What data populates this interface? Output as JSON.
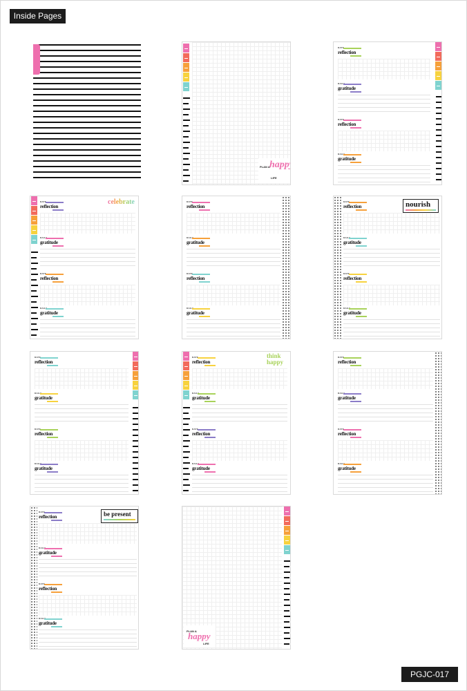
{
  "header": {
    "label": "Inside Pages"
  },
  "footer": {
    "code": "PGJC-017"
  },
  "words": {
    "date": "DATE",
    "daily": "DAILY",
    "reflection": "reflection",
    "gratitude": "gratitude"
  },
  "stickers": {
    "celebrate": "celebrate",
    "nourish": "nourish",
    "be_present": "be present",
    "think_happy": "think happy",
    "plan_a": "PLAN A",
    "happy": "happy",
    "life": "LIFE"
  },
  "colors": {
    "pink": "#ee6fae",
    "coral": "#f26a5b",
    "orange": "#f6a03a",
    "yellow": "#f7d23e",
    "teal": "#7fd3cf",
    "green": "#a8d25a",
    "purple": "#8b7cc8",
    "ink": "#111111"
  }
}
